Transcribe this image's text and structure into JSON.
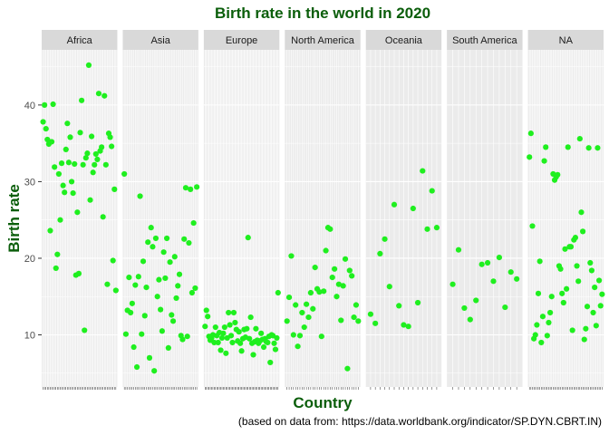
{
  "chart_data": {
    "type": "scatter",
    "title": "Birth rate in the world in 2020",
    "xlabel": "Country",
    "ylabel": "Birth rate",
    "caption": "(based on data from: https://data.worldbank.org/indicator/SP.DYN.CBRT.IN)",
    "ylim": [
      3.2,
      47.2
    ],
    "yticks": [
      10,
      20,
      30,
      40
    ],
    "grid": true,
    "legend": "none",
    "colors": {
      "point": "#1fef1f",
      "title": "#0b5e0b",
      "panel_bg": "#ebebeb",
      "strip_bg": "#d9d9d9",
      "grid": "#ffffff"
    },
    "facets": [
      {
        "name": "Africa",
        "values": [
          37.8,
          40.0,
          36.9,
          35.5,
          34.9,
          23.6,
          35.2,
          40.1,
          31.9,
          18.7,
          20.5,
          31.0,
          25.0,
          32.4,
          29.5,
          28.6,
          34.2,
          37.6,
          32.5,
          35.8,
          30.0,
          28.5,
          32.3,
          17.8,
          26.0,
          18.0,
          36.4,
          40.6,
          32.2,
          10.6,
          33.1,
          33.7,
          45.2,
          27.6,
          35.9,
          31.2,
          32.2,
          33.6,
          32.9,
          41.5,
          34.0,
          34.5,
          25.4,
          41.2,
          32.2,
          16.6,
          36.3,
          35.8,
          34.6,
          19.7,
          29.0,
          15.8
        ]
      },
      {
        "name": "Asia",
        "values": [
          31.0,
          10.1,
          13.2,
          17.5,
          12.9,
          14.1,
          8.4,
          16.5,
          5.8,
          17.6,
          28.1,
          10.1,
          19.6,
          12.5,
          16.2,
          22.1,
          7.0,
          24.0,
          21.5,
          5.3,
          22.6,
          15.0,
          17.2,
          13.3,
          10.5,
          20.8,
          17.4,
          22.6,
          8.3,
          19.5,
          12.6,
          11.8,
          20.2,
          14.8,
          16.4,
          17.9,
          9.9,
          9.4,
          22.5,
          29.2,
          9.8,
          22.0,
          29.0,
          15.5,
          24.6,
          16.1,
          29.3
        ]
      },
      {
        "name": "Europe",
        "values": [
          11.1,
          13.2,
          12.4,
          9.8,
          9.3,
          9.6,
          10.0,
          9.0,
          11.0,
          9.9,
          9.0,
          10.3,
          8.0,
          9.6,
          10.2,
          11.0,
          7.6,
          9.6,
          12.9,
          11.3,
          9.9,
          9.0,
          12.9,
          11.6,
          10.7,
          9.2,
          10.4,
          8.9,
          7.9,
          9.5,
          10.7,
          9.7,
          10.8,
          22.7,
          9.5,
          12.3,
          8.9,
          7.4,
          9.1,
          10.8,
          9.3,
          8.9,
          9.2,
          10.2,
          9.4,
          8.4,
          9.5,
          9.1,
          9.0,
          9.8,
          6.4,
          10.0,
          9.9,
          8.9,
          8.1,
          9.6,
          15.5
        ]
      },
      {
        "name": "North America",
        "values": [
          11.8,
          14.9,
          20.3,
          10.0,
          13.9,
          8.5,
          9.9,
          12.9,
          11.0,
          14.0,
          12.3,
          15.5,
          13.4,
          18.8,
          16.0,
          15.6,
          9.8,
          15.7,
          21.0,
          24.0,
          23.8,
          17.5,
          18.6,
          15.0,
          16.6,
          11.9,
          16.4,
          19.9,
          5.6,
          18.4,
          17.7,
          12.3,
          13.9,
          11.8
        ]
      },
      {
        "name": "Oceania",
        "values": [
          12.7,
          11.5,
          20.6,
          22.5,
          16.3,
          27.0,
          13.8,
          11.3,
          11.1,
          26.5,
          14.2,
          31.4,
          23.8,
          28.8,
          24.0
        ]
      },
      {
        "name": "South America",
        "values": [
          16.6,
          21.1,
          13.5,
          12.0,
          14.5,
          19.2,
          19.4,
          17.0,
          20.1,
          13.6,
          18.2,
          17.3
        ]
      },
      {
        "name": "NA",
        "values": [
          33.2,
          36.3,
          24.2,
          9.5,
          10.0,
          11.3,
          15.4,
          19.6,
          9.0,
          12.4,
          32.7,
          34.5,
          9.9,
          11.6,
          12.9,
          15.0,
          31.0,
          30.2,
          30.6,
          30.9,
          19.0,
          18.6,
          15.4,
          14.2,
          21.2,
          16.0,
          34.5,
          21.5,
          21.5,
          10.6,
          22.4,
          22.7,
          19.0,
          17.0,
          35.6,
          26.0,
          23.5,
          9.4,
          10.8,
          13.7,
          34.4,
          19.4,
          18.4,
          12.9,
          16.2,
          11.2,
          34.4,
          17.1,
          13.8,
          15.3
        ]
      }
    ]
  }
}
